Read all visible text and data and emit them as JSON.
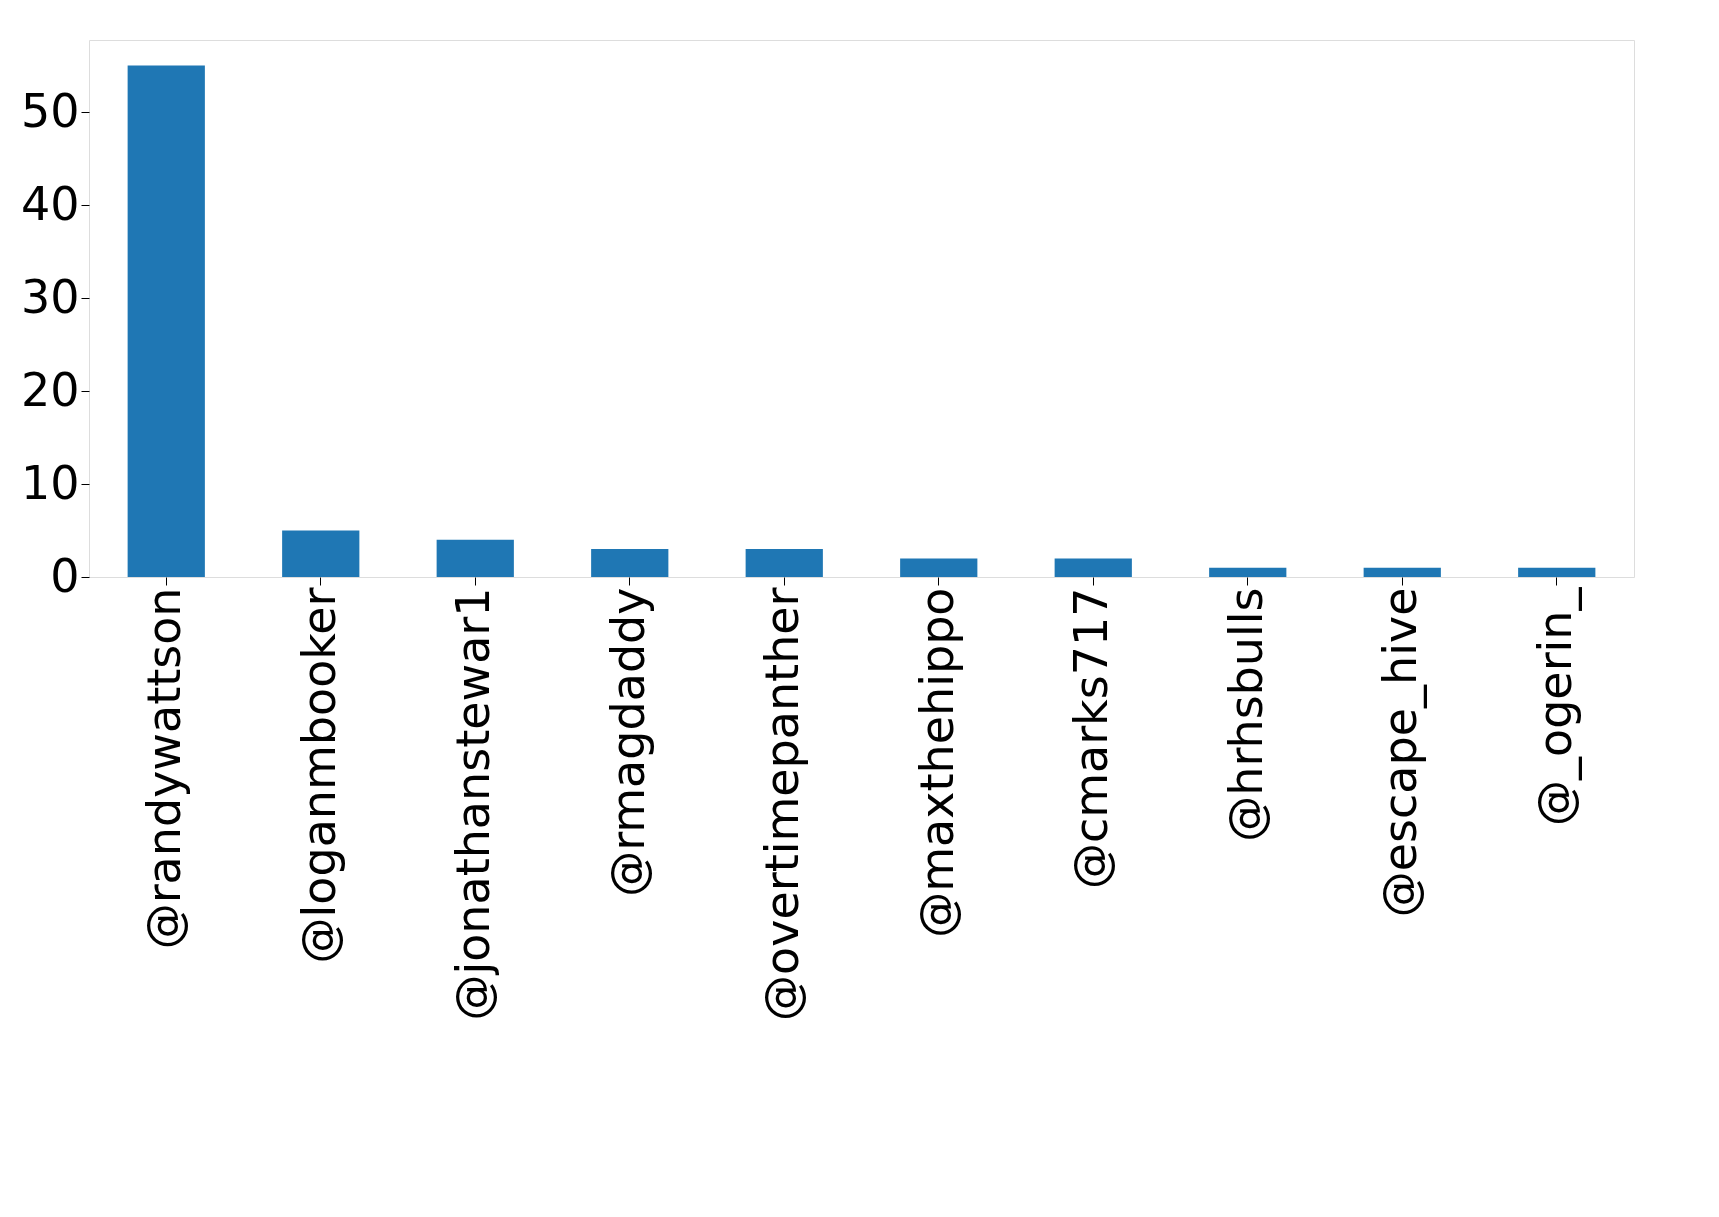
{
  "chart_data": {
    "type": "bar",
    "categories": [
      "@randywattson",
      "@loganmbooker",
      "@jonathanstewar1",
      "@rmagdaddy",
      "@overtimepanther",
      "@maxthehippo",
      "@cmarks717",
      "@hrhsbulls",
      "@escape_hive",
      "@_ogerin_"
    ],
    "values": [
      55,
      5,
      4,
      3,
      3,
      2,
      2,
      1,
      1,
      1
    ],
    "color": "#1f77b4",
    "ylim": [
      0,
      57.75
    ],
    "yticks": [
      0,
      10,
      20,
      30,
      40,
      50
    ],
    "grid": false
  }
}
